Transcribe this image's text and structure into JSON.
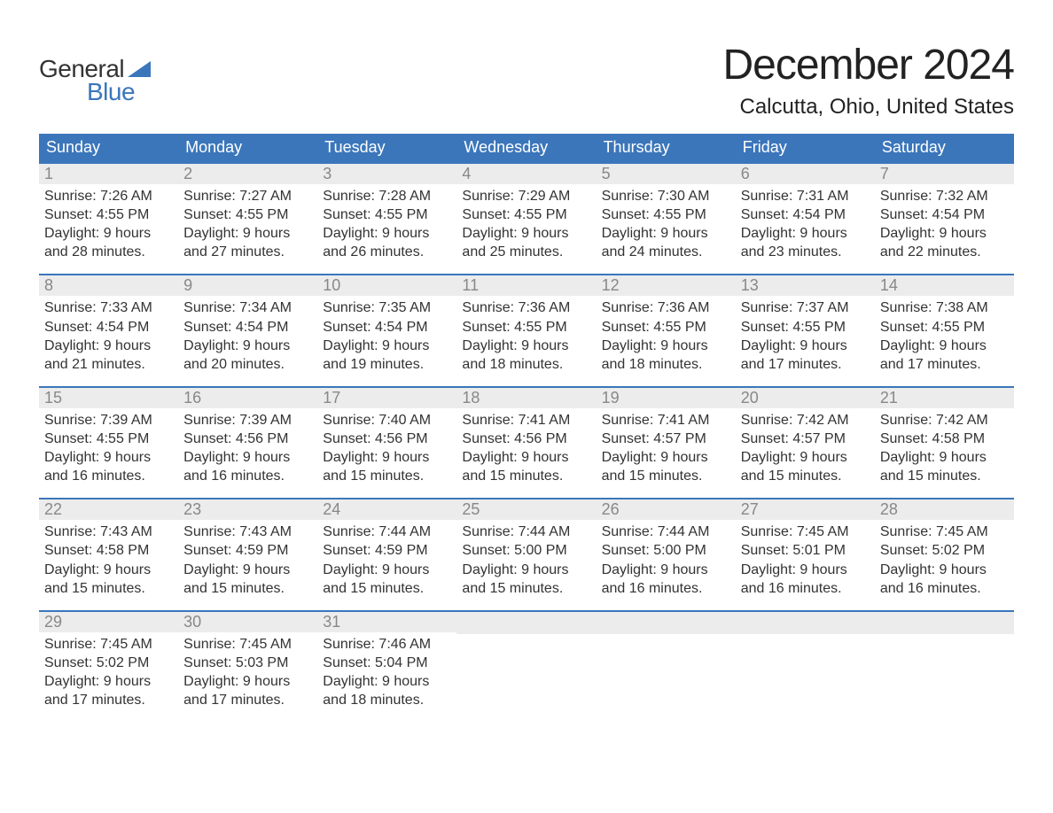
{
  "logo": {
    "text1": "General",
    "text2": "Blue"
  },
  "title": "December 2024",
  "location": "Calcutta, Ohio, United States",
  "colors": {
    "accent": "#3b76bb",
    "header_bg": "#3b76bb",
    "header_text": "#ffffff",
    "daynum_bg": "#ececec",
    "daynum_text": "#888888",
    "body_text": "#333333",
    "page_bg": "#ffffff",
    "week_border": "#3b76bb"
  },
  "typography": {
    "title_fontsize": 48,
    "location_fontsize": 24,
    "header_fontsize": 18,
    "daynum_fontsize": 18,
    "body_fontsize": 16,
    "font_family": "Arial"
  },
  "layout": {
    "cols": 7,
    "rows": 5,
    "cell_padding_bottom": 14
  },
  "weekdays": [
    "Sunday",
    "Monday",
    "Tuesday",
    "Wednesday",
    "Thursday",
    "Friday",
    "Saturday"
  ],
  "labels": {
    "sunrise": "Sunrise:",
    "sunset": "Sunset:",
    "daylight_prefix": "Daylight:"
  },
  "weeks": [
    [
      {
        "n": "1",
        "sunrise": "7:26 AM",
        "sunset": "4:55 PM",
        "daylight": "9 hours and 28 minutes."
      },
      {
        "n": "2",
        "sunrise": "7:27 AM",
        "sunset": "4:55 PM",
        "daylight": "9 hours and 27 minutes."
      },
      {
        "n": "3",
        "sunrise": "7:28 AM",
        "sunset": "4:55 PM",
        "daylight": "9 hours and 26 minutes."
      },
      {
        "n": "4",
        "sunrise": "7:29 AM",
        "sunset": "4:55 PM",
        "daylight": "9 hours and 25 minutes."
      },
      {
        "n": "5",
        "sunrise": "7:30 AM",
        "sunset": "4:55 PM",
        "daylight": "9 hours and 24 minutes."
      },
      {
        "n": "6",
        "sunrise": "7:31 AM",
        "sunset": "4:54 PM",
        "daylight": "9 hours and 23 minutes."
      },
      {
        "n": "7",
        "sunrise": "7:32 AM",
        "sunset": "4:54 PM",
        "daylight": "9 hours and 22 minutes."
      }
    ],
    [
      {
        "n": "8",
        "sunrise": "7:33 AM",
        "sunset": "4:54 PM",
        "daylight": "9 hours and 21 minutes."
      },
      {
        "n": "9",
        "sunrise": "7:34 AM",
        "sunset": "4:54 PM",
        "daylight": "9 hours and 20 minutes."
      },
      {
        "n": "10",
        "sunrise": "7:35 AM",
        "sunset": "4:54 PM",
        "daylight": "9 hours and 19 minutes."
      },
      {
        "n": "11",
        "sunrise": "7:36 AM",
        "sunset": "4:55 PM",
        "daylight": "9 hours and 18 minutes."
      },
      {
        "n": "12",
        "sunrise": "7:36 AM",
        "sunset": "4:55 PM",
        "daylight": "9 hours and 18 minutes."
      },
      {
        "n": "13",
        "sunrise": "7:37 AM",
        "sunset": "4:55 PM",
        "daylight": "9 hours and 17 minutes."
      },
      {
        "n": "14",
        "sunrise": "7:38 AM",
        "sunset": "4:55 PM",
        "daylight": "9 hours and 17 minutes."
      }
    ],
    [
      {
        "n": "15",
        "sunrise": "7:39 AM",
        "sunset": "4:55 PM",
        "daylight": "9 hours and 16 minutes."
      },
      {
        "n": "16",
        "sunrise": "7:39 AM",
        "sunset": "4:56 PM",
        "daylight": "9 hours and 16 minutes."
      },
      {
        "n": "17",
        "sunrise": "7:40 AM",
        "sunset": "4:56 PM",
        "daylight": "9 hours and 15 minutes."
      },
      {
        "n": "18",
        "sunrise": "7:41 AM",
        "sunset": "4:56 PM",
        "daylight": "9 hours and 15 minutes."
      },
      {
        "n": "19",
        "sunrise": "7:41 AM",
        "sunset": "4:57 PM",
        "daylight": "9 hours and 15 minutes."
      },
      {
        "n": "20",
        "sunrise": "7:42 AM",
        "sunset": "4:57 PM",
        "daylight": "9 hours and 15 minutes."
      },
      {
        "n": "21",
        "sunrise": "7:42 AM",
        "sunset": "4:58 PM",
        "daylight": "9 hours and 15 minutes."
      }
    ],
    [
      {
        "n": "22",
        "sunrise": "7:43 AM",
        "sunset": "4:58 PM",
        "daylight": "9 hours and 15 minutes."
      },
      {
        "n": "23",
        "sunrise": "7:43 AM",
        "sunset": "4:59 PM",
        "daylight": "9 hours and 15 minutes."
      },
      {
        "n": "24",
        "sunrise": "7:44 AM",
        "sunset": "4:59 PM",
        "daylight": "9 hours and 15 minutes."
      },
      {
        "n": "25",
        "sunrise": "7:44 AM",
        "sunset": "5:00 PM",
        "daylight": "9 hours and 15 minutes."
      },
      {
        "n": "26",
        "sunrise": "7:44 AM",
        "sunset": "5:00 PM",
        "daylight": "9 hours and 16 minutes."
      },
      {
        "n": "27",
        "sunrise": "7:45 AM",
        "sunset": "5:01 PM",
        "daylight": "9 hours and 16 minutes."
      },
      {
        "n": "28",
        "sunrise": "7:45 AM",
        "sunset": "5:02 PM",
        "daylight": "9 hours and 16 minutes."
      }
    ],
    [
      {
        "n": "29",
        "sunrise": "7:45 AM",
        "sunset": "5:02 PM",
        "daylight": "9 hours and 17 minutes."
      },
      {
        "n": "30",
        "sunrise": "7:45 AM",
        "sunset": "5:03 PM",
        "daylight": "9 hours and 17 minutes."
      },
      {
        "n": "31",
        "sunrise": "7:46 AM",
        "sunset": "5:04 PM",
        "daylight": "9 hours and 18 minutes."
      },
      null,
      null,
      null,
      null
    ]
  ]
}
